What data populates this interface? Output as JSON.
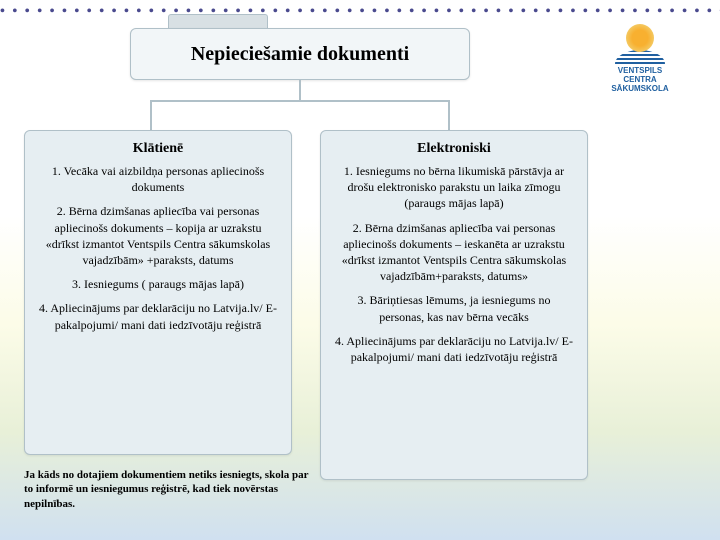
{
  "border_dots": "• • • • • • • • • • • • • • • • • • • • • • • • • • • • • • • • • • • • • • • • • • • • • • • • • • • • • • • • • • • • • • • • • • • • • • • • • • • • • • • • • • • • • • • • • • • • •",
  "title": "Nepieciešamie dokumenti",
  "logo": {
    "line1": "VENTSPILS",
    "line2": "CENTRA",
    "line3": "SĀKUMSKOLA"
  },
  "columns": {
    "left": {
      "heading": "Klātienē",
      "items": [
        "1. Vecāka vai aizbildņa personas apliecinošs dokuments",
        "2. Bērna dzimšanas apliecība vai personas apliecinošs dokuments – kopija ar uzrakstu «drīkst izmantot Ventspils Centra sākumskolas vajadzībām» +paraksts, datums",
        "3. Iesniegums ( paraugs mājas lapā)",
        "4. Apliecinājums par deklarāciju no Latvija.lv/ E-pakalpojumi/ mani dati iedzīvotāju reģistrā"
      ]
    },
    "right": {
      "heading": "Elektroniski",
      "items": [
        "1. Iesniegums no bērna likumiskā pārstāvja ar drošu elektronisko parakstu un laika zīmogu (paraugs mājas lapā)",
        "2. Bērna dzimšanas apliecība vai personas apliecinošs dokuments – ieskanēta ar uzrakstu «drīkst izmantot Ventspils Centra sākumskolas vajadzībām+paraksts, datums»",
        "3. Bāriņtiesas lēmums, ja iesniegums no personas, kas nav bērna vecāks",
        "4. Apliecinājums par deklarāciju no Latvija.lv/ E-pakalpojumi/ mani dati iedzīvotāju reģistrā"
      ]
    }
  },
  "footer": "Ja kāds no dotajiem dokumentiem netiks iesniegts, skola par to informē un iesniegumus reģistrē, kad tiek novērstas nepilnības.",
  "styling": {
    "title_fontsize": 20,
    "heading_fontsize": 14,
    "item_fontsize": 12,
    "footer_fontsize": 11,
    "box_bg": "#e6eef2",
    "box_border": "#b0c0c8",
    "title_bg": "#f2f6f8",
    "dots_color": "#4a4a8e",
    "gradient_stops": [
      "#ffffff",
      "#fcfce8",
      "#e8f0d8",
      "#d0e0f0"
    ],
    "logo_sun": "#f8b030",
    "logo_text_color": "#2060a0",
    "structure_type": "tree"
  }
}
